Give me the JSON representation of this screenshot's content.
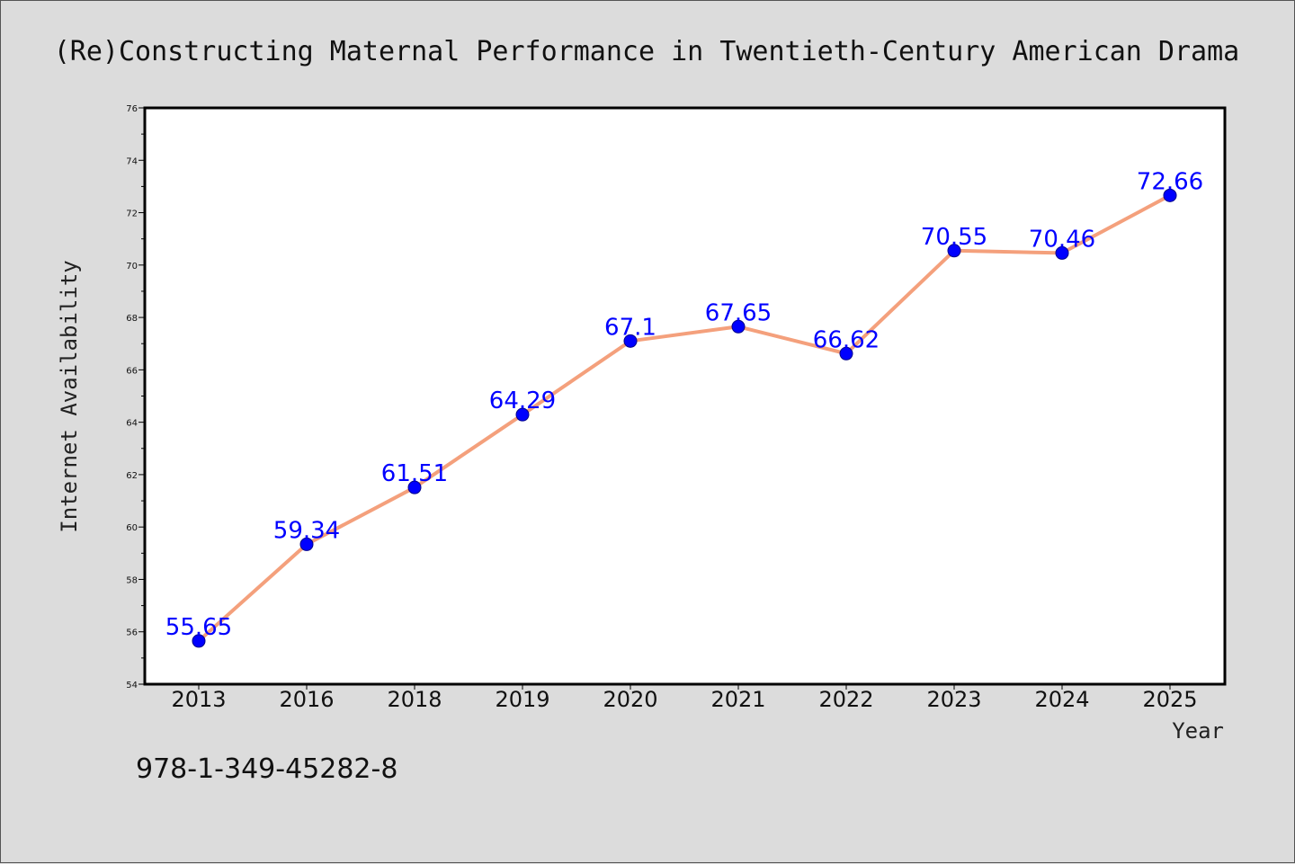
{
  "chart_data": {
    "type": "line",
    "title": "(Re)Constructing Maternal Performance in Twentieth-Century American Drama",
    "xlabel": "Year",
    "ylabel": "Internet Availability",
    "categories": [
      "2013",
      "2016",
      "2018",
      "2019",
      "2020",
      "2021",
      "2022",
      "2023",
      "2024",
      "2025"
    ],
    "series": [
      {
        "values": [
          55.65,
          59.34,
          61.51,
          64.29,
          67.1,
          67.65,
          66.62,
          70.55,
          70.46,
          72.66
        ]
      }
    ],
    "data_labels": [
      "55.65",
      "59.34",
      "61.51",
      "64.29",
      "67.1",
      "67.65",
      "66.62",
      "70.55",
      "70.46",
      "72.66"
    ],
    "ylim": [
      54,
      76
    ],
    "yticks": [
      "54",
      "56",
      "58",
      "60",
      "62",
      "64",
      "66",
      "68",
      "70",
      "72",
      "74",
      "76"
    ],
    "grid": false,
    "legend": "none",
    "colors": {
      "line": "#f4a07c",
      "marker": "#0000ff",
      "marker_edge": "#00008b",
      "label": "#0000ff"
    }
  },
  "footer": {
    "isbn": "978-1-349-45282-8"
  }
}
